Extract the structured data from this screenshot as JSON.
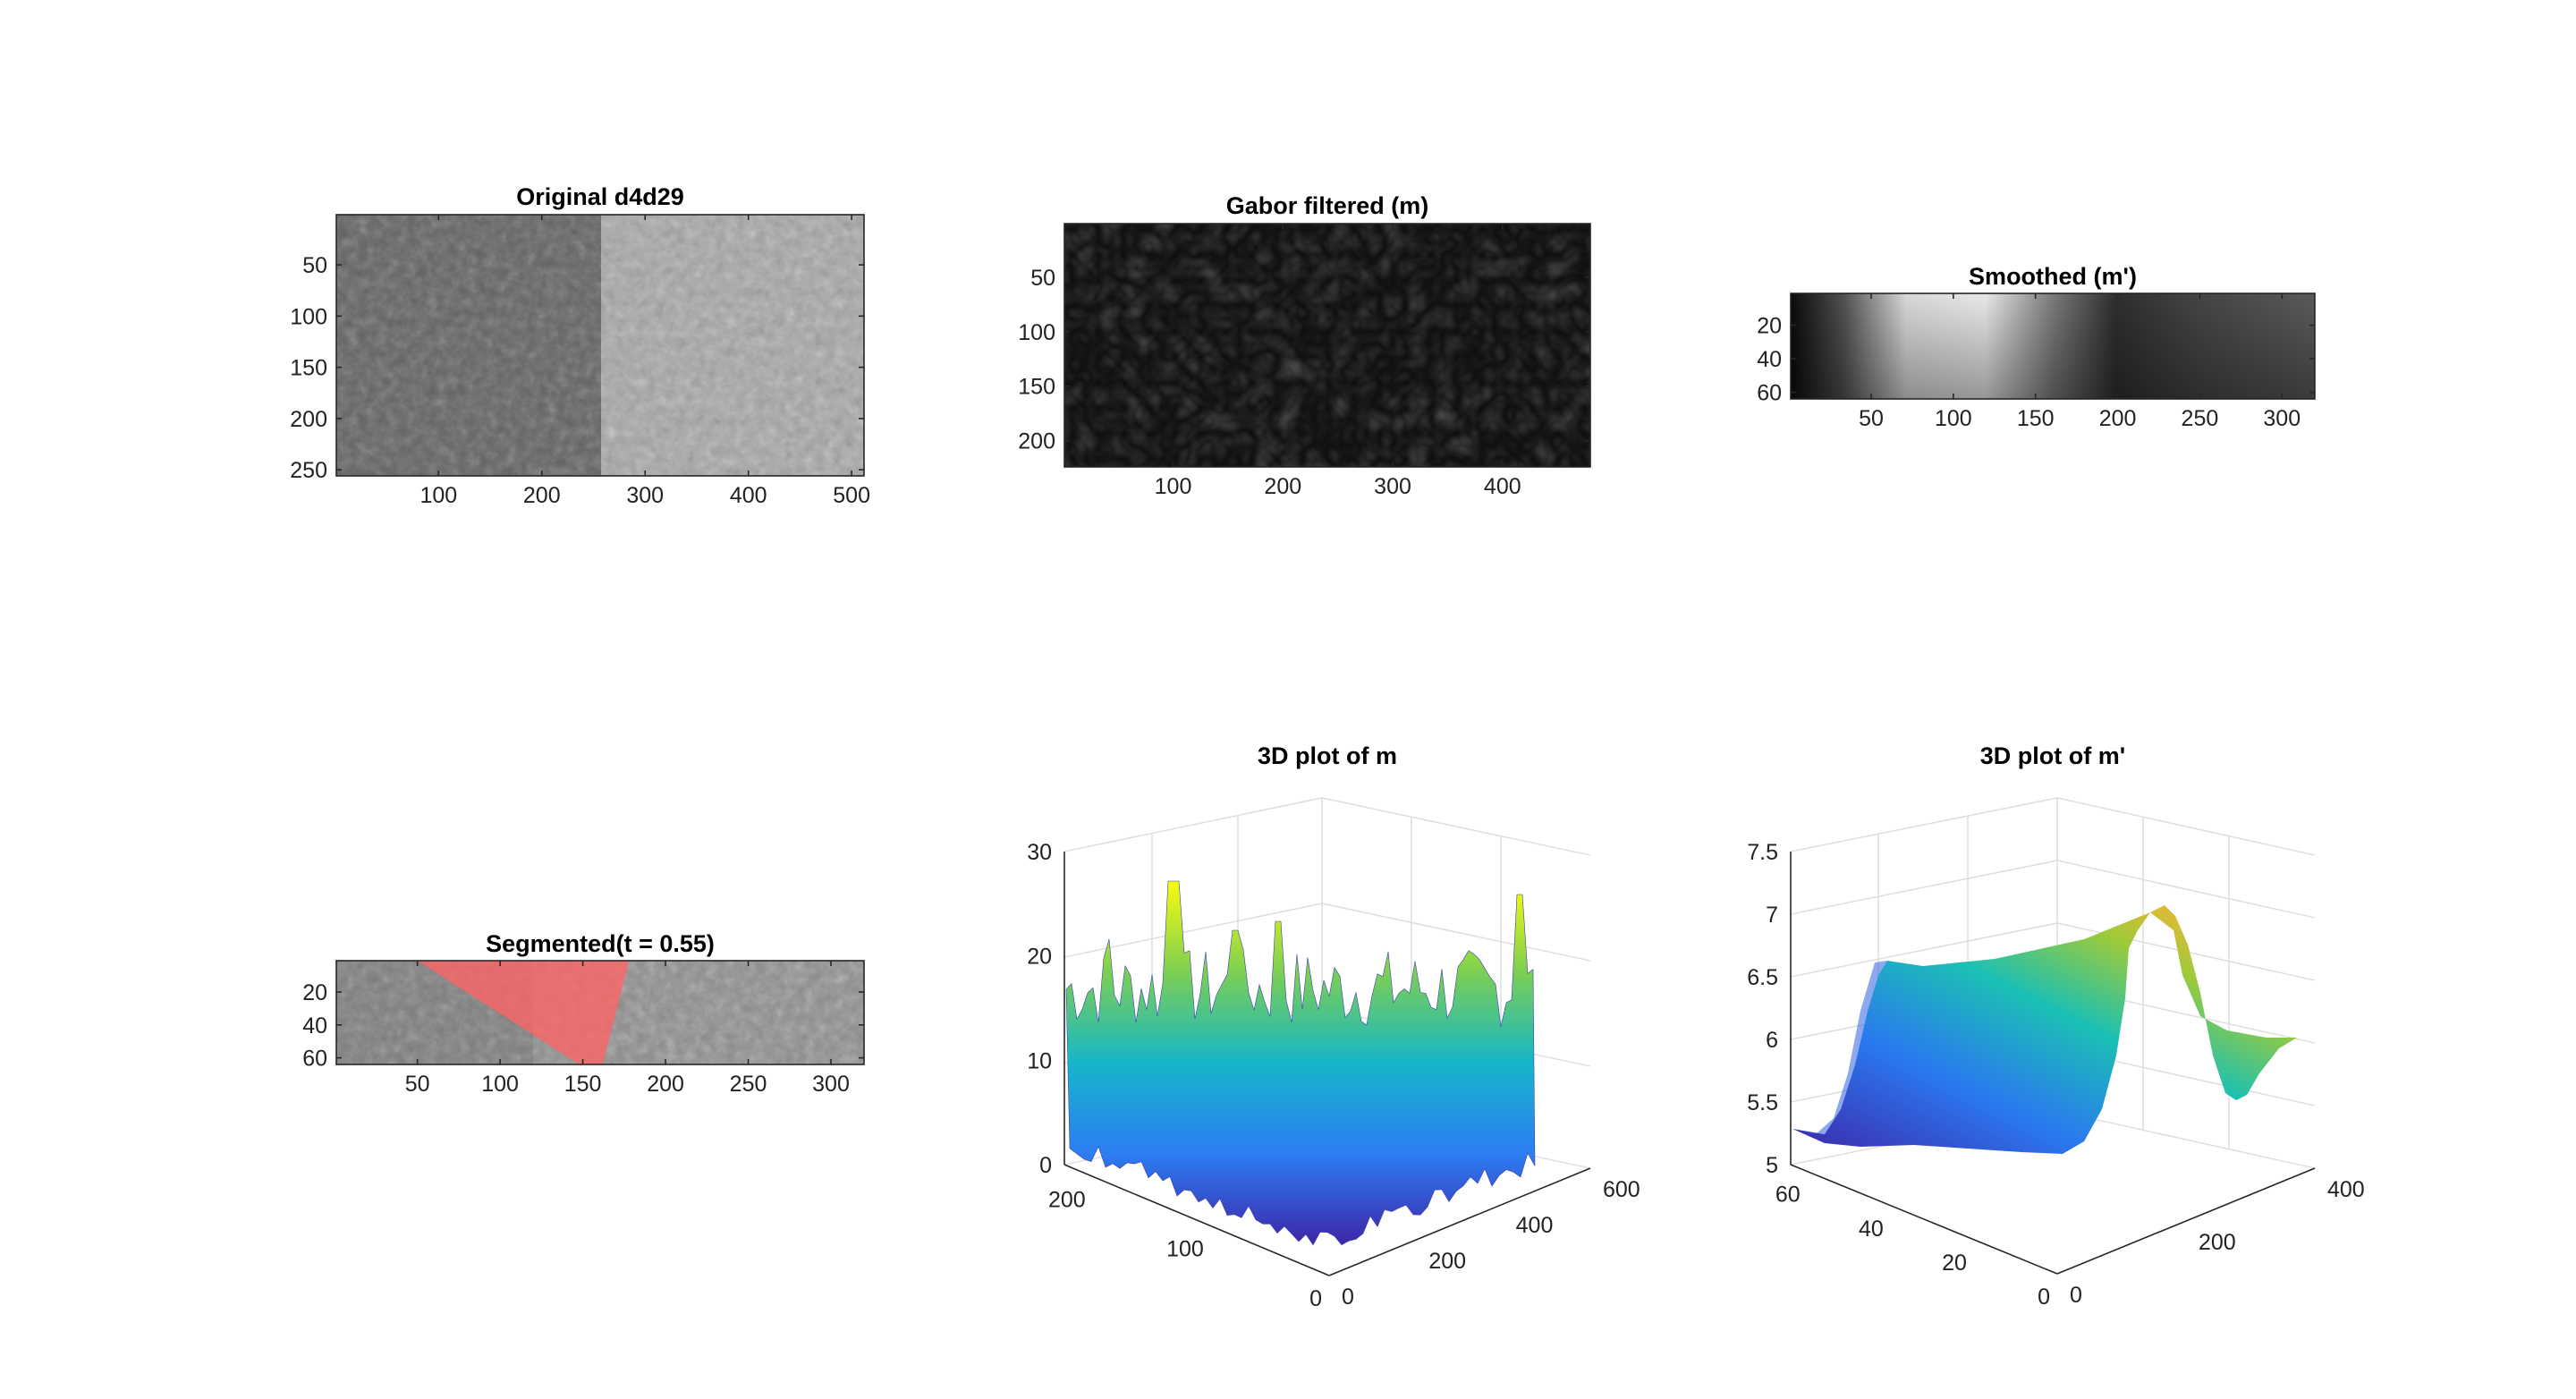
{
  "chart_data": [
    {
      "type": "heatmap",
      "title": "Original d4d29",
      "x_ticks": [
        "100",
        "200",
        "300",
        "400",
        "500"
      ],
      "y_ticks": [
        "50",
        "100",
        "150",
        "200",
        "250"
      ],
      "xlim": [
        1,
        512
      ],
      "ylim": [
        1,
        256
      ],
      "colormap": "gray",
      "content": "grayscale stone texture image; left half darker, right half lighter"
    },
    {
      "type": "heatmap",
      "title": "Gabor filtered (m)",
      "x_ticks": [
        "100",
        "200",
        "300",
        "400"
      ],
      "y_ticks": [
        "50",
        "100",
        "150",
        "200"
      ],
      "xlim": [
        1,
        480
      ],
      "ylim": [
        1,
        224
      ],
      "colormap": "gray"
    },
    {
      "type": "heatmap",
      "title": "Smoothed (m')",
      "x_ticks": [
        "50",
        "100",
        "150",
        "200",
        "250",
        "300"
      ],
      "y_ticks": [
        "20",
        "40",
        "60"
      ],
      "xlim": [
        1,
        320
      ],
      "ylim": [
        1,
        64
      ],
      "colormap": "gray",
      "bright_region_center_x": 120
    },
    {
      "type": "heatmap",
      "title": "Segmented(t = 0.55)",
      "x_ticks": [
        "50",
        "100",
        "150",
        "200",
        "250",
        "300"
      ],
      "y_ticks": [
        "20",
        "40",
        "60"
      ],
      "xlim": [
        1,
        320
      ],
      "ylim": [
        1,
        64
      ],
      "colormap": "gray",
      "highlight_color": "#ff6060",
      "highlight_region_x_top": [
        50,
        178
      ],
      "highlight_region_x_bottom": [
        148,
        162
      ]
    },
    {
      "type": "surface3d",
      "title": "3D plot of m",
      "x_ticks": [
        "0",
        "200",
        "400",
        "600"
      ],
      "y_ticks": [
        "0",
        "100",
        "200"
      ],
      "z_ticks": [
        "0",
        "10",
        "20",
        "30"
      ],
      "xlim": [
        0,
        600
      ],
      "ylim": [
        0,
        224
      ],
      "zlim": [
        0,
        30
      ],
      "colormap": "parula"
    },
    {
      "type": "surface3d",
      "title": "3D plot of m'",
      "x_ticks": [
        "0",
        "200",
        "400"
      ],
      "y_ticks": [
        "0",
        "20",
        "40",
        "60"
      ],
      "z_ticks": [
        "5",
        "5.5",
        "6",
        "6.5",
        "7",
        "7.5"
      ],
      "xlim": [
        0,
        400
      ],
      "ylim": [
        0,
        64
      ],
      "zlim": [
        5,
        7.5
      ],
      "colormap": "parula"
    }
  ]
}
